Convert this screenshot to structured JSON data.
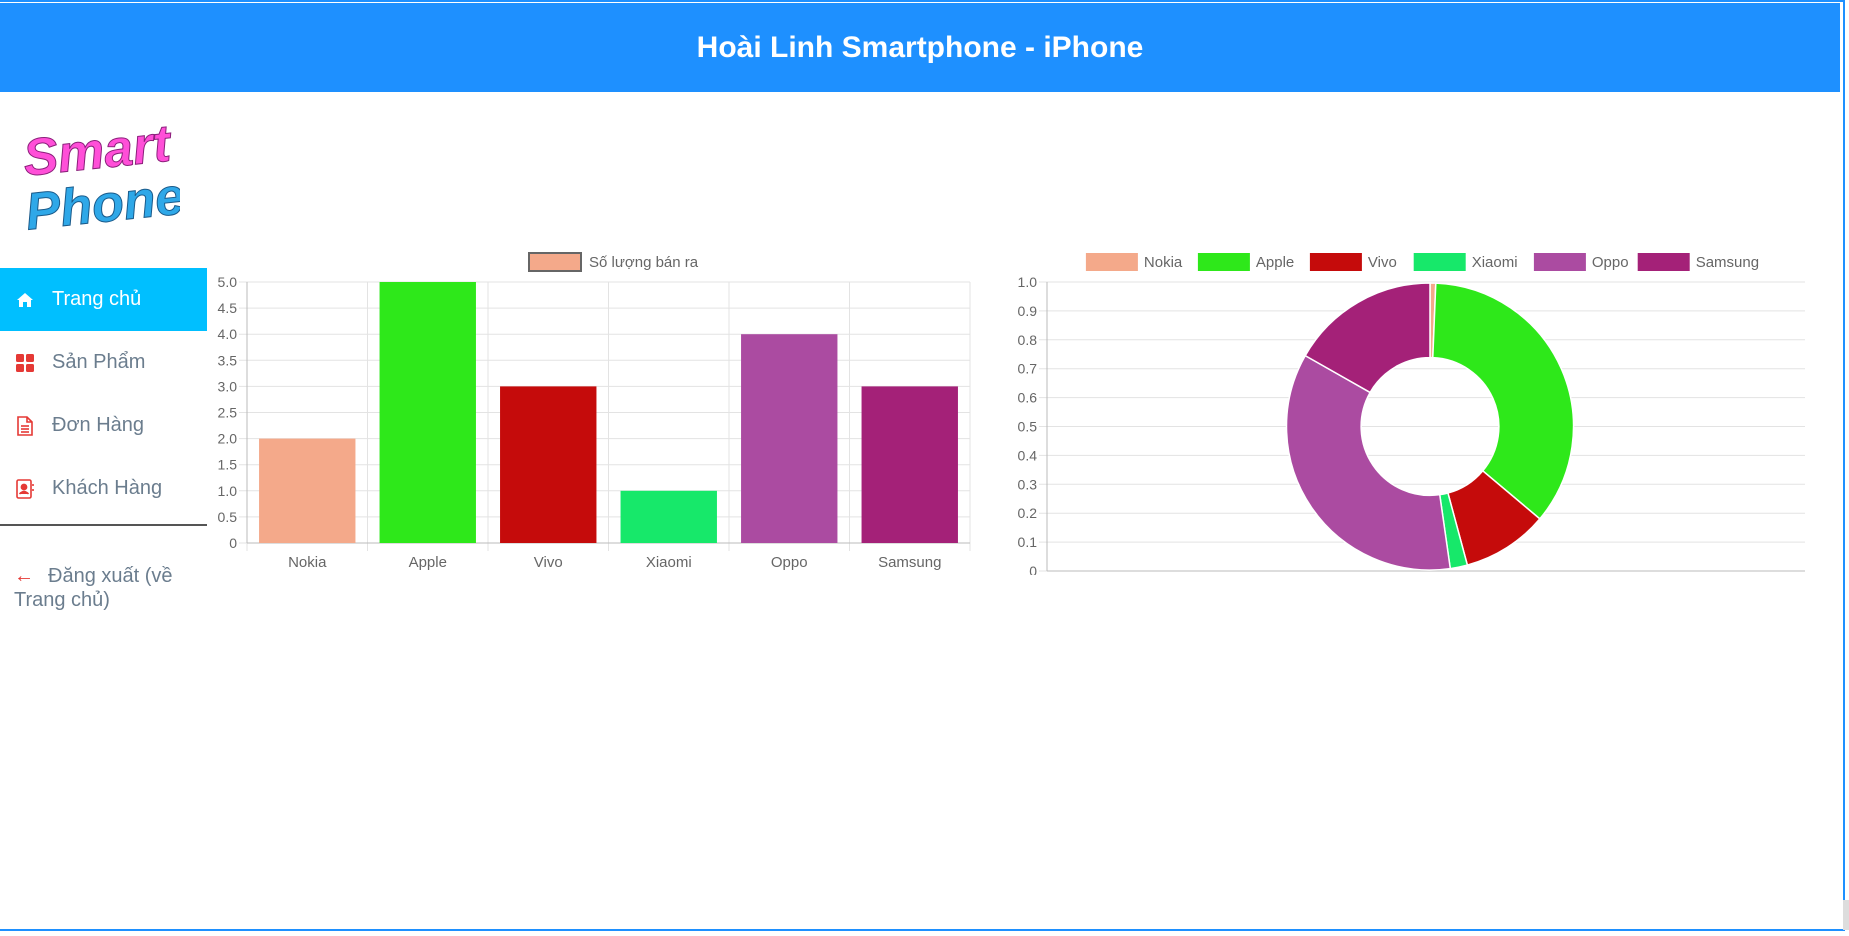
{
  "header": {
    "title": "Hoài Linh Smartphone - iPhone"
  },
  "logo": {
    "line1": "Smart",
    "line2": "Phone"
  },
  "sidebar": {
    "items": [
      {
        "label": "Trang chủ",
        "icon": "home-icon",
        "active": true
      },
      {
        "label": "Sản Phẩm",
        "icon": "grid-icon",
        "active": false
      },
      {
        "label": "Đơn Hàng",
        "icon": "document-icon",
        "active": false
      },
      {
        "label": "Khách Hàng",
        "icon": "contact-card-icon",
        "active": false
      }
    ],
    "logout_label": "Đăng xuất (về Trang chủ)"
  },
  "chart_data": [
    {
      "type": "bar",
      "categories": [
        "Nokia",
        "Apple",
        "Vivo",
        "Xiaomi",
        "Oppo",
        "Samsung"
      ],
      "series": [
        {
          "name": "Số lượng bán ra",
          "values": [
            2,
            5,
            3,
            1,
            4,
            3
          ]
        }
      ],
      "colors": [
        "#f4a98a",
        "#2ee81a",
        "#c50b0b",
        "#17e86a",
        "#ab4ba1",
        "#a42178"
      ],
      "ylim": [
        0,
        5
      ],
      "yticks": [
        "0",
        "0.5",
        "1.0",
        "1.5",
        "2.0",
        "2.5",
        "3.0",
        "3.5",
        "4.0",
        "4.5",
        "5.0"
      ],
      "legend": "top",
      "grid": true
    },
    {
      "type": "pie",
      "donut": true,
      "categories": [
        "Nokia",
        "Apple",
        "Vivo",
        "Xiaomi",
        "Oppo",
        "Samsung"
      ],
      "values": [
        2,
        110,
        30,
        6,
        110,
        52
      ],
      "colors": [
        "#f4a98a",
        "#2ee81a",
        "#c50b0b",
        "#17e86a",
        "#ab4ba1",
        "#a42178"
      ],
      "ylim": [
        0,
        1
      ],
      "yticks": [
        "0",
        "0.1",
        "0.2",
        "0.3",
        "0.4",
        "0.5",
        "0.6",
        "0.7",
        "0.8",
        "0.9",
        "1.0"
      ],
      "legend": "top",
      "grid": true
    }
  ]
}
